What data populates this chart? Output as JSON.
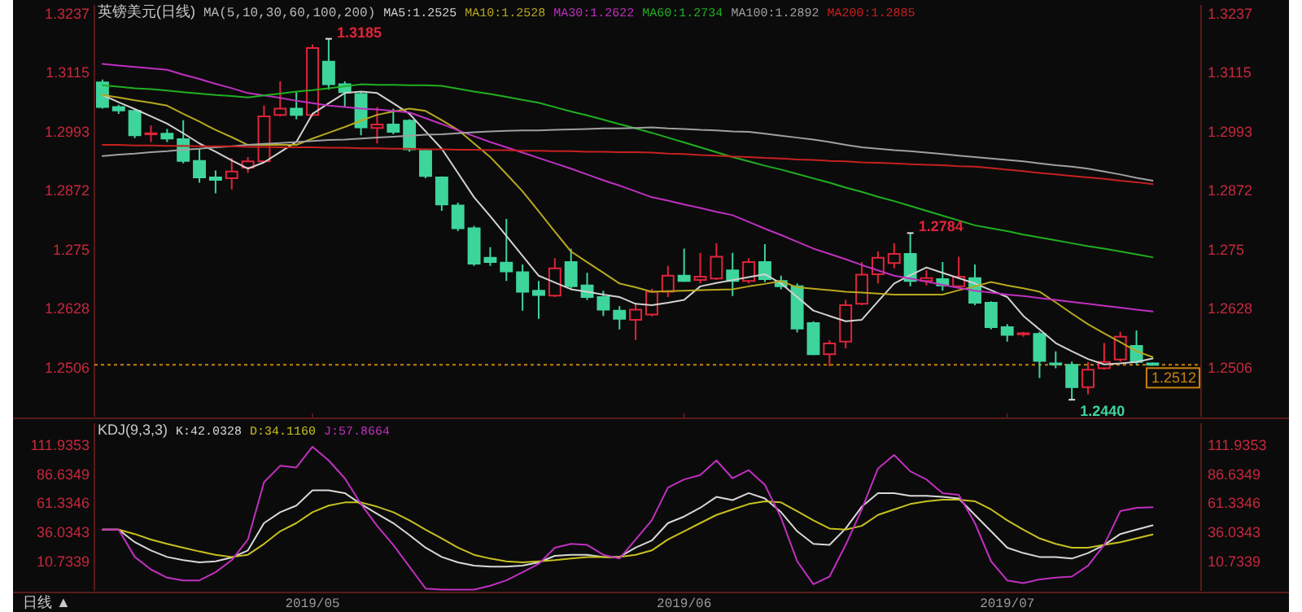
{
  "chart_data": [
    {
      "type": "candlestick",
      "title": "英镑美元(日线)",
      "legend_title": "MA(5,10,30,60,100,200)",
      "legend": "top",
      "tick_labels": "y",
      "categories": [
        null,
        null,
        null,
        null,
        null,
        null,
        null,
        null,
        null,
        null,
        null,
        null,
        null,
        "2019/05",
        null,
        null,
        null,
        null,
        null,
        null,
        null,
        null,
        null,
        null,
        null,
        null,
        null,
        null,
        null,
        null,
        null,
        null,
        null,
        null,
        null,
        null,
        "2019/06",
        null,
        null,
        null,
        null,
        null,
        null,
        null,
        null,
        null,
        null,
        null,
        null,
        null,
        null,
        null,
        null,
        null,
        null,
        null,
        "2019/07",
        null,
        null,
        null,
        null,
        null,
        null,
        null,
        null,
        null
      ],
      "ohlc": [
        [
          1.3095,
          1.3101,
          1.3041,
          1.3044
        ],
        [
          1.3044,
          1.3049,
          1.303,
          1.3037
        ],
        [
          1.3036,
          1.3041,
          1.298,
          1.2986
        ],
        [
          1.2988,
          1.3006,
          1.2972,
          1.299
        ],
        [
          1.2989,
          1.2999,
          1.2972,
          1.2979
        ],
        [
          1.2978,
          1.3017,
          1.2928,
          1.2933
        ],
        [
          1.2933,
          1.2958,
          1.2888,
          1.2899
        ],
        [
          1.2899,
          1.2913,
          1.2866,
          1.2894
        ],
        [
          1.2897,
          1.2939,
          1.2874,
          1.2911
        ],
        [
          1.2919,
          1.2941,
          1.2908,
          1.2932
        ],
        [
          1.2932,
          1.3047,
          1.293,
          1.3025
        ],
        [
          1.3028,
          1.3097,
          1.3025,
          1.3041
        ],
        [
          1.3041,
          1.3075,
          1.3019,
          1.3028
        ],
        [
          1.3028,
          1.3173,
          1.3025,
          1.3166
        ],
        [
          1.3138,
          1.3185,
          1.308,
          1.3091
        ],
        [
          1.3091,
          1.3097,
          1.3044,
          1.3075
        ],
        [
          1.3071,
          1.3075,
          1.2986,
          1.3002
        ],
        [
          1.3001,
          1.3044,
          1.2969,
          1.3008
        ],
        [
          1.3008,
          1.3041,
          1.2988,
          1.2993
        ],
        [
          1.3016,
          1.3019,
          1.2952,
          1.2957
        ],
        [
          1.2954,
          1.2958,
          1.2897,
          1.2902
        ],
        [
          1.2899,
          1.2901,
          1.283,
          1.2843
        ],
        [
          1.2841,
          1.2847,
          1.2788,
          1.2794
        ],
        [
          1.2794,
          1.2799,
          1.2716,
          1.2721
        ],
        [
          1.2733,
          1.2755,
          1.2716,
          1.2724
        ],
        [
          1.2723,
          1.2813,
          1.2685,
          1.2705
        ],
        [
          1.2703,
          1.2719,
          1.2624,
          1.2663
        ],
        [
          1.2665,
          1.2685,
          1.2607,
          1.2656
        ],
        [
          1.2655,
          1.2732,
          1.2652,
          1.2711
        ],
        [
          1.2724,
          1.2752,
          1.2668,
          1.2674
        ],
        [
          1.2676,
          1.2702,
          1.2646,
          1.2652
        ],
        [
          1.2652,
          1.2665,
          1.2613,
          1.2626
        ],
        [
          1.2624,
          1.2633,
          1.2585,
          1.2607
        ],
        [
          1.2605,
          1.264,
          1.2563,
          1.2626
        ],
        [
          1.2616,
          1.2669,
          1.2612,
          1.2663
        ],
        [
          1.2663,
          1.2716,
          1.2652,
          1.2696
        ],
        [
          1.2696,
          1.2752,
          1.2683,
          1.2685
        ],
        [
          1.2687,
          1.2743,
          1.268,
          1.2694
        ],
        [
          1.269,
          1.2763,
          1.2687,
          1.2735
        ],
        [
          1.2707,
          1.2743,
          1.2654,
          1.2685
        ],
        [
          1.2685,
          1.2732,
          1.268,
          1.2724
        ],
        [
          1.2724,
          1.2761,
          1.2683,
          1.2689
        ],
        [
          1.2685,
          1.2696,
          1.2668,
          1.2674
        ],
        [
          1.2674,
          1.268,
          1.2579,
          1.2587
        ],
        [
          1.2598,
          1.2602,
          1.2532,
          1.2534
        ],
        [
          1.2534,
          1.2563,
          1.2509,
          1.2556
        ],
        [
          1.256,
          1.2646,
          1.2546,
          1.2635
        ],
        [
          1.2638,
          1.2724,
          1.2635,
          1.2698
        ],
        [
          1.2699,
          1.2746,
          1.268,
          1.2733
        ],
        [
          1.2722,
          1.2763,
          1.2711,
          1.2741
        ],
        [
          1.2741,
          1.2784,
          1.2674,
          1.2685
        ],
        [
          1.2685,
          1.2707,
          1.2676,
          1.2691
        ],
        [
          1.2689,
          1.2724,
          1.2665,
          1.2676
        ],
        [
          1.2674,
          1.2735,
          1.2672,
          1.2694
        ],
        [
          1.2691,
          1.2719,
          1.2635,
          1.264
        ],
        [
          1.264,
          1.2643,
          1.2585,
          1.259
        ],
        [
          1.259,
          1.2596,
          1.256,
          1.2574
        ],
        [
          1.2575,
          1.258,
          1.257,
          1.2577
        ],
        [
          1.2576,
          1.258,
          1.2485,
          1.252
        ],
        [
          1.2515,
          1.254,
          1.2505,
          1.2513
        ],
        [
          1.2512,
          1.2519,
          1.244,
          1.2466
        ],
        [
          1.2466,
          1.2518,
          1.2451,
          1.2502
        ],
        [
          1.2505,
          1.2557,
          1.2502,
          1.2518
        ],
        [
          1.2523,
          1.258,
          1.2518,
          1.257
        ],
        [
          1.2551,
          1.2583,
          1.2512,
          1.2518
        ],
        [
          1.2515,
          1.2517,
          1.251,
          1.2512
        ]
      ],
      "colors": [
        "#3ed59c",
        "#3ed59c",
        "#3ed59c",
        "#e0243a",
        "#3ed59c",
        "#3ed59c",
        "#3ed59c",
        "#3ed59c",
        "#e0243a",
        "#e0243a",
        "#e0243a",
        "#e0243a",
        "#3ed59c",
        "#e0243a",
        "#3ed59c",
        "#3ed59c",
        "#3ed59c",
        "#e0243a",
        "#3ed59c",
        "#3ed59c",
        "#3ed59c",
        "#3ed59c",
        "#3ed59c",
        "#3ed59c",
        "#3ed59c",
        "#3ed59c",
        "#3ed59c",
        "#3ed59c",
        "#e0243a",
        "#3ed59c",
        "#3ed59c",
        "#3ed59c",
        "#3ed59c",
        "#e0243a",
        "#e0243a",
        "#e0243a",
        "#3ed59c",
        "#e0243a",
        "#e0243a",
        "#3ed59c",
        "#e0243a",
        "#3ed59c",
        "#3ed59c",
        "#3ed59c",
        "#3ed59c",
        "#e0243a",
        "#e0243a",
        "#e0243a",
        "#e0243a",
        "#e0243a",
        "#3ed59c",
        "#e0243a",
        "#3ed59c",
        "#e0243a",
        "#3ed59c",
        "#3ed59c",
        "#3ed59c",
        "#e0243a",
        "#3ed59c",
        "#3ed59c",
        "#3ed59c",
        "#e0243a",
        "#e0243a",
        "#e0243a",
        "#3ed59c",
        "#3ed59c"
      ],
      "series": [
        {
          "name": "MA5:1.2525",
          "type": "line",
          "color": "#d2d2d2",
          "values": [
            1.3069,
            1.3054,
            1.304,
            1.3025,
            1.301,
            1.299,
            1.2969,
            1.2952,
            1.2934,
            1.2917,
            1.293,
            1.2951,
            1.2972,
            1.303,
            1.3052,
            1.3073,
            1.3076,
            1.3073,
            1.3052,
            1.303,
            1.2994,
            1.2958,
            1.2908,
            1.2858,
            1.2819,
            1.2778,
            1.2737,
            1.2696,
            1.2682,
            1.2668,
            1.2663,
            1.2657,
            1.2652,
            1.2638,
            1.2635,
            1.264,
            1.2646,
            1.2674,
            1.2681,
            1.2687,
            1.2693,
            1.2699,
            1.268,
            1.2652,
            1.2624,
            1.2613,
            1.2602,
            1.2605,
            1.2643,
            1.268,
            1.2697,
            1.2713,
            1.2702,
            1.2691,
            1.268,
            1.2666,
            1.2652,
            1.2613,
            1.2585,
            1.2557,
            1.254,
            1.2524,
            1.2513,
            1.2515,
            1.2518,
            1.2525
          ]
        },
        {
          "name": "MA10:1.2528",
          "type": "line",
          "color": "#b8a81e",
          "values": [
            1.3069,
            1.3064,
            1.3058,
            1.3053,
            1.3047,
            1.303,
            1.3014,
            1.2997,
            1.2982,
            1.2966,
            1.2966,
            1.2966,
            1.2966,
            1.2979,
            1.2991,
            1.3003,
            1.3016,
            1.3028,
            1.3035,
            1.3041,
            1.3036,
            1.3017,
            1.2997,
            1.2969,
            1.2941,
            1.2906,
            1.287,
            1.2829,
            1.2787,
            1.2746,
            1.2724,
            1.2702,
            1.268,
            1.2672,
            1.2663,
            1.2664,
            1.2665,
            1.2666,
            1.2667,
            1.2668,
            1.2674,
            1.2679,
            1.2685,
            1.2672,
            1.2669,
            1.2666,
            1.2663,
            1.2661,
            1.2659,
            1.2657,
            1.2657,
            1.2657,
            1.2657,
            1.2666,
            1.2674,
            1.2683,
            1.2676,
            1.267,
            1.2663,
            1.2641,
            1.2618,
            1.2596,
            1.2577,
            1.2559,
            1.254,
            1.2528
          ]
        },
        {
          "name": "MA30:1.2622",
          "type": "line",
          "color": "#c030c0",
          "values": [
            1.3133,
            1.313,
            1.3127,
            1.3124,
            1.3121,
            1.3111,
            1.3102,
            1.3092,
            1.3083,
            1.3073,
            1.3068,
            1.3063,
            1.3057,
            1.3052,
            1.3047,
            1.3044,
            1.3041,
            1.3039,
            1.3036,
            1.3033,
            1.3021,
            1.3009,
            1.2996,
            1.2984,
            1.2972,
            1.2961,
            1.295,
            1.2939,
            1.2928,
            1.2917,
            1.2905,
            1.2893,
            1.2882,
            1.287,
            1.2858,
            1.2851,
            1.2843,
            1.2836,
            1.2828,
            1.2821,
            1.2807,
            1.2793,
            1.278,
            1.2766,
            1.2752,
            1.2741,
            1.273,
            1.2718,
            1.2707,
            1.2696,
            1.269,
            1.2684,
            1.2677,
            1.2671,
            1.2665,
            1.2661,
            1.2657,
            1.2654,
            1.265,
            1.2646,
            1.2642,
            1.2638,
            1.2634,
            1.263,
            1.2626,
            1.2622
          ]
        },
        {
          "name": "MA60:1.2734",
          "type": "line",
          "color": "#20b020",
          "values": [
            1.3089,
            1.3086,
            1.3083,
            1.3081,
            1.3078,
            1.3075,
            1.3072,
            1.3069,
            1.3067,
            1.3064,
            1.3068,
            1.3072,
            1.3076,
            1.3079,
            1.3083,
            1.3087,
            1.3091,
            1.309,
            1.309,
            1.3089,
            1.3089,
            1.3088,
            1.3082,
            1.3076,
            1.3071,
            1.3065,
            1.3059,
            1.3053,
            1.3044,
            1.3035,
            1.3027,
            1.3018,
            1.3009,
            1.3,
            1.2991,
            1.2981,
            1.2971,
            1.2961,
            1.2951,
            1.2941,
            1.2932,
            1.2923,
            1.2915,
            1.2906,
            1.2897,
            1.2888,
            1.2878,
            1.2869,
            1.2859,
            1.285,
            1.284,
            1.283,
            1.282,
            1.281,
            1.28,
            1.2794,
            1.2788,
            1.2781,
            1.2775,
            1.2769,
            1.2763,
            1.2757,
            1.2752,
            1.2746,
            1.274,
            1.2734
          ]
        },
        {
          "name": "MA100:1.2892",
          "type": "line",
          "color": "#a0a0a0",
          "values": [
            1.2943,
            1.2946,
            1.2948,
            1.2951,
            1.2953,
            1.2956,
            1.2958,
            1.2961,
            1.2963,
            1.2966,
            1.2968,
            1.297,
            1.2972,
            1.2974,
            1.2976,
            1.2977,
            1.2979,
            1.2981,
            1.2983,
            1.2985,
            1.2987,
            1.2988,
            1.299,
            1.2992,
            1.2994,
            1.2995,
            1.2996,
            1.2996,
            1.2997,
            1.2998,
            1.2999,
            1.3,
            1.3,
            1.3001,
            1.3002,
            1.3,
            1.2999,
            1.2997,
            1.2996,
            1.2994,
            1.2993,
            1.2989,
            1.2985,
            1.2981,
            1.2977,
            1.2972,
            1.2966,
            1.2961,
            1.2958,
            1.2955,
            1.2953,
            1.295,
            1.2947,
            1.2944,
            1.2941,
            1.2938,
            1.2935,
            1.2932,
            1.2928,
            1.2924,
            1.2921,
            1.2917,
            1.2911,
            1.2905,
            1.2898,
            1.2892
          ]
        },
        {
          "name": "MA200:1.2885",
          "type": "line",
          "color": "#c82020",
          "values": [
            1.2966,
            1.2966,
            1.2965,
            1.2965,
            1.2964,
            1.2964,
            1.2963,
            1.2963,
            1.2963,
            1.2962,
            1.2962,
            1.2961,
            1.2961,
            1.2961,
            1.296,
            1.296,
            1.2959,
            1.2959,
            1.2958,
            1.2958,
            1.2957,
            1.2957,
            1.2956,
            1.2956,
            1.2955,
            1.2955,
            1.2954,
            1.2954,
            1.2953,
            1.2953,
            1.2952,
            1.2952,
            1.2951,
            1.2951,
            1.295,
            1.2948,
            1.2947,
            1.2945,
            1.2944,
            1.2942,
            1.2941,
            1.2939,
            1.2938,
            1.2936,
            1.2935,
            1.2933,
            1.2932,
            1.293,
            1.2929,
            1.2928,
            1.2926,
            1.2925,
            1.2924,
            1.2922,
            1.2921,
            1.2918,
            1.2915,
            1.2912,
            1.2908,
            1.2905,
            1.2902,
            1.2899,
            1.2896,
            1.2892,
            1.2889,
            1.2885
          ]
        }
      ],
      "ylim": [
        1.2405,
        1.3255
      ],
      "yticks": [
        1.2506,
        1.2628,
        1.275,
        1.2872,
        1.2993,
        1.3115,
        1.3237
      ],
      "y2lim": [
        1.2405,
        1.3255
      ],
      "y2ticks": [
        1.2506,
        1.2628,
        1.275,
        1.2872,
        1.2993,
        1.3115,
        1.3237
      ],
      "ref_lines": [
        {
          "axis": "y2",
          "value": 1.2512,
          "label": "1.2512",
          "color": "#c8820a",
          "line_style": "dotted"
        }
      ],
      "annotations": [
        "1.3185",
        "1.2784",
        "1.2440"
      ]
    },
    {
      "type": "line",
      "title": "KDJ(9,3,3)",
      "legend": "top left",
      "categories": [
        null,
        null,
        null,
        null,
        null,
        null,
        null,
        null,
        null,
        null,
        null,
        null,
        null,
        "2019/05",
        null,
        null,
        null,
        null,
        null,
        null,
        null,
        null,
        null,
        null,
        null,
        null,
        null,
        null,
        null,
        null,
        null,
        null,
        null,
        null,
        null,
        null,
        "2019/06",
        null,
        null,
        null,
        null,
        null,
        null,
        null,
        null,
        null,
        null,
        null,
        null,
        null,
        null,
        null,
        null,
        null,
        null,
        null,
        "2019/07",
        null,
        null,
        null,
        null,
        null,
        null,
        null,
        null,
        null
      ],
      "series": [
        {
          "name": "K:42.0328",
          "color": "#d8d8d8",
          "values": [
            38.3,
            38.3,
            27.4,
            20.2,
            14.5,
            11.7,
            9.8,
            10.7,
            14.0,
            20.2,
            44.0,
            53.5,
            59.2,
            72.5,
            72.5,
            70.1,
            60.6,
            52.1,
            44.0,
            33.5,
            22.6,
            14.5,
            9.8,
            6.9,
            6.0,
            6.0,
            6.9,
            9.8,
            15.5,
            16.4,
            16.4,
            14.5,
            14.5,
            22.6,
            28.8,
            44.0,
            49.7,
            57.3,
            66.8,
            64.0,
            70.1,
            65.4,
            53.5,
            36.9,
            25.9,
            25.0,
            39.3,
            58.3,
            70.1,
            70.1,
            67.8,
            67.8,
            66.8,
            65.4,
            51.1,
            36.9,
            22.6,
            17.9,
            14.5,
            14.5,
            13.1,
            17.9,
            25.0,
            34.5,
            38.3,
            42.03
          ]
        },
        {
          "name": "D:34.1160",
          "color": "#c8c020",
          "values": [
            38.3,
            38.3,
            34.5,
            29.7,
            25.9,
            22.6,
            19.3,
            16.4,
            14.5,
            16.4,
            25.9,
            36.9,
            44.0,
            53.5,
            59.2,
            62.0,
            62.0,
            58.3,
            53.5,
            46.4,
            38.3,
            30.7,
            22.6,
            16.4,
            13.1,
            10.7,
            9.8,
            10.7,
            11.7,
            13.1,
            14.5,
            14.5,
            14.5,
            16.4,
            20.2,
            29.7,
            36.9,
            44.0,
            51.1,
            55.9,
            60.6,
            63.0,
            62.0,
            54.4,
            46.4,
            39.3,
            38.3,
            41.6,
            51.1,
            55.9,
            60.6,
            63.0,
            64.4,
            64.4,
            63.0,
            55.9,
            46.4,
            38.3,
            30.7,
            25.9,
            22.6,
            22.6,
            25.0,
            27.4,
            30.7,
            34.12
          ]
        },
        {
          "name": "J:57.8664",
          "color": "#c030c0",
          "values": [
            38.3,
            38.3,
            14.5,
            3.6,
            -3.5,
            -5.9,
            -5.9,
            1.2,
            11.7,
            29.7,
            79.6,
            93.9,
            92.4,
            110.5,
            98.6,
            83.0,
            60.6,
            41.6,
            25.0,
            6.0,
            -13.0,
            -14.0,
            -14.0,
            -14.0,
            -10.6,
            -5.9,
            1.2,
            8.4,
            22.6,
            25.9,
            25.0,
            16.4,
            13.1,
            29.7,
            46.4,
            74.9,
            82.0,
            85.8,
            98.6,
            83.0,
            90.1,
            77.3,
            48.7,
            10.7,
            -9.2,
            -2.6,
            25.0,
            55.9,
            91.5,
            103.4,
            89.1,
            82.0,
            70.1,
            68.7,
            44.0,
            10.7,
            -5.9,
            -8.3,
            -5.0,
            -3.5,
            -2.6,
            6.9,
            25.0,
            54.4,
            57.3,
            57.87
          ]
        }
      ],
      "ylim": [
        -15,
        131
      ],
      "yticks": [
        10.7339,
        36.0343,
        61.3346,
        86.6349,
        111.9353
      ],
      "y2lim": [
        -15,
        131
      ],
      "y2ticks": [
        10.7339,
        36.0343,
        61.3346,
        86.6349,
        111.9353
      ],
      "annotations": [
        "日线 ▲"
      ]
    }
  ]
}
